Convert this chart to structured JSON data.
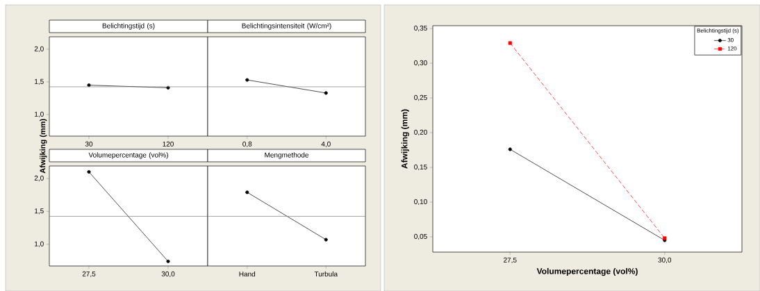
{
  "chart_data": [
    {
      "type": "line",
      "title": "Belichtingstijd (s)",
      "ylabel": "Afwijking (mm)",
      "categories": [
        "30",
        "120"
      ],
      "values": [
        1.45,
        1.41
      ],
      "color": "#000000",
      "marker": "circle",
      "ylim": [
        0.67,
        2.19
      ],
      "yticks": [
        {
          "value": 1.0,
          "label": "1,0"
        },
        {
          "value": 1.5,
          "label": "1,5"
        },
        {
          "value": 2.0,
          "label": "2,0"
        }
      ],
      "ref_lines": [
        {
          "axis": "y",
          "value": 1.425,
          "color": "#808080"
        }
      ]
    },
    {
      "type": "line",
      "title": "Belichtingsintensiteit (W/cm²)",
      "categories": [
        "0,8",
        "4,0"
      ],
      "values": [
        1.53,
        1.33
      ],
      "color": "#000000",
      "marker": "circle",
      "ylim": [
        0.67,
        2.19
      ],
      "tick_labels": "x",
      "ref_lines": [
        {
          "axis": "y",
          "value": 1.425,
          "color": "#808080"
        }
      ]
    },
    {
      "type": "line",
      "title": "Volumepercentage (vol%)",
      "categories": [
        "27,5",
        "30,0"
      ],
      "values": [
        2.1,
        0.74
      ],
      "color": "#000000",
      "marker": "circle",
      "ylim": [
        0.67,
        2.19
      ],
      "yticks": [
        {
          "value": 1.0,
          "label": "1,0"
        },
        {
          "value": 1.5,
          "label": "1,5"
        },
        {
          "value": 2.0,
          "label": "2,0"
        }
      ],
      "ref_lines": [
        {
          "axis": "y",
          "value": 1.425,
          "color": "#808080"
        }
      ]
    },
    {
      "type": "line",
      "title": "Mengmethode",
      "categories": [
        "Hand",
        "Turbula"
      ],
      "values": [
        1.79,
        1.07
      ],
      "color": "#000000",
      "marker": "circle",
      "ylim": [
        0.67,
        2.19
      ],
      "tick_labels": "x",
      "ref_lines": [
        {
          "axis": "y",
          "value": 1.425,
          "color": "#808080"
        }
      ]
    },
    {
      "type": "line",
      "xlabel": "Volumepercentage (vol%)",
      "ylabel": "Afwijking (mm)",
      "legend_title": "Belichtingstijd (s)",
      "legend": "top right",
      "x": [
        27.5,
        30.0
      ],
      "xlim": [
        26.25,
        31.25
      ],
      "xticks": [
        {
          "value": 27.5,
          "label": "27,5"
        },
        {
          "value": 30.0,
          "label": "30,0"
        }
      ],
      "series": [
        {
          "name": "30",
          "color": "#000000",
          "marker": "circle",
          "line_style": "solid",
          "values": [
            0.176,
            0.045
          ]
        },
        {
          "name": "120",
          "color": "#ff0000",
          "marker": "square",
          "line_style": "dashed",
          "values": [
            0.329,
            0.048
          ]
        }
      ],
      "ylim": [
        0.028,
        0.354
      ],
      "yticks": [
        {
          "value": 0.05,
          "label": "0,05"
        },
        {
          "value": 0.1,
          "label": "0,10"
        },
        {
          "value": 0.15,
          "label": "0,15"
        },
        {
          "value": 0.2,
          "label": "0,20"
        },
        {
          "value": 0.25,
          "label": "0,25"
        },
        {
          "value": 0.3,
          "label": "0,30"
        },
        {
          "value": 0.35,
          "label": "0,35"
        }
      ]
    }
  ]
}
